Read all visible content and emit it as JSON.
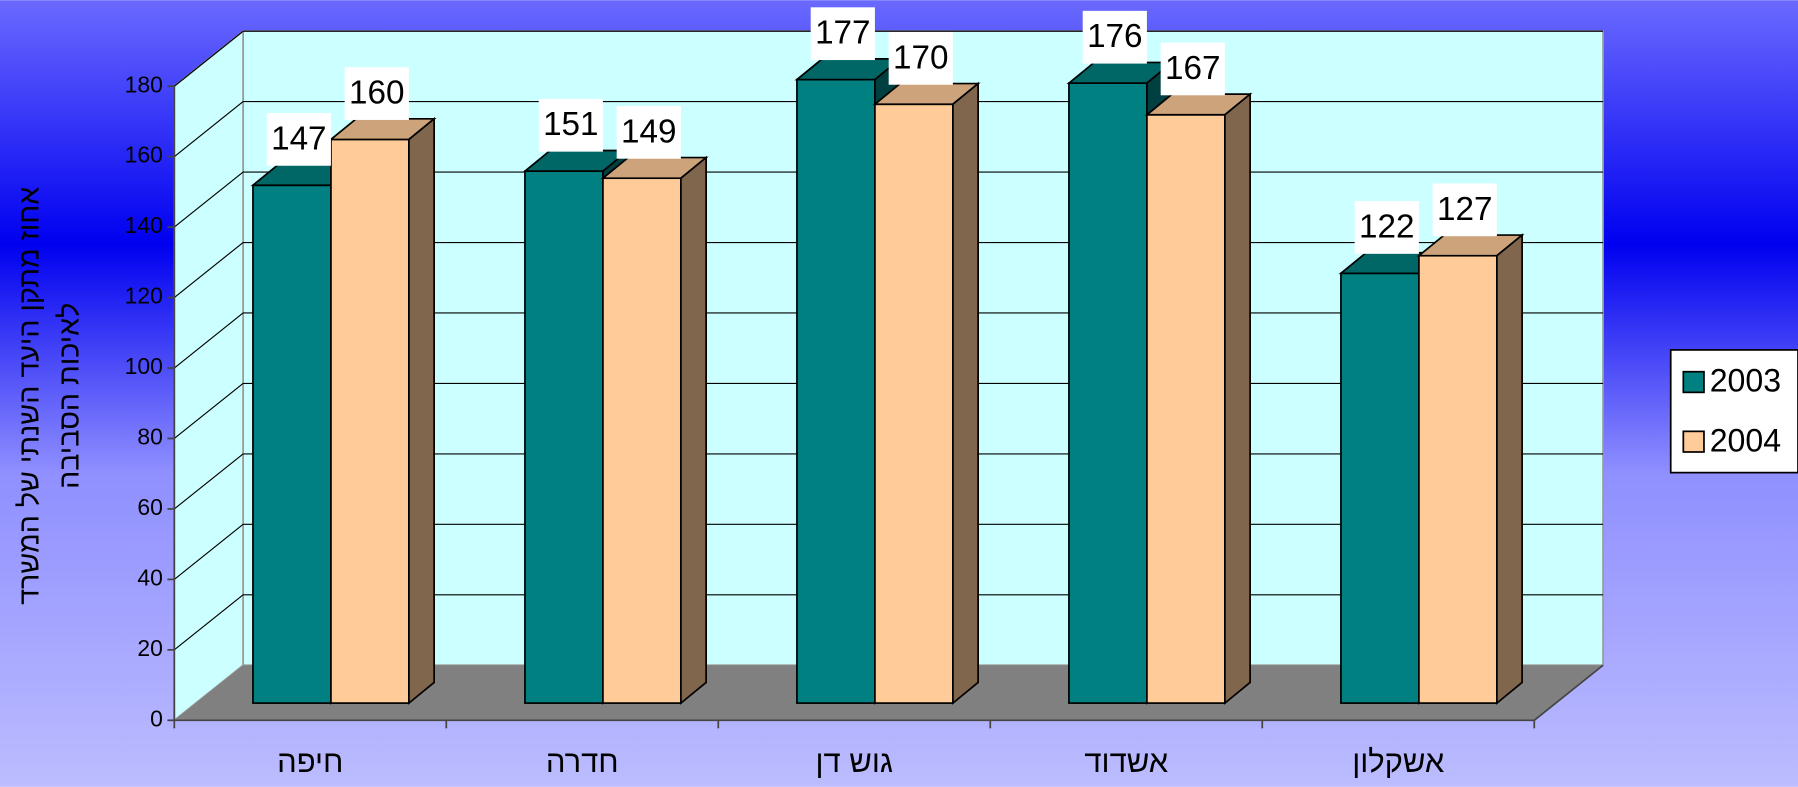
{
  "chart_data": {
    "type": "bar3d",
    "ylabel": [
      "אחוז מתקן היעד השנתי של המשרד",
      "לאיכות הסביבה"
    ],
    "categories": [
      "חיפה",
      "חדרה",
      "גוש דן",
      "אשדוד",
      "אשקלון"
    ],
    "series": [
      {
        "name": "2003",
        "color": "#008080",
        "values": [
          147,
          151,
          177,
          176,
          122
        ]
      },
      {
        "name": "2004",
        "color": "#ffcc99",
        "values": [
          160,
          149,
          170,
          167,
          127
        ]
      }
    ],
    "ylim": [
      0,
      180
    ],
    "yticks": [
      0,
      20,
      40,
      60,
      80,
      100,
      120,
      140,
      160,
      180
    ],
    "grid": true,
    "legend": "right"
  }
}
